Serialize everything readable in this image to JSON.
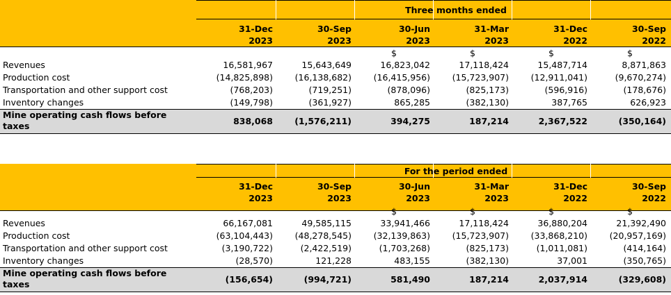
{
  "columns": [
    {
      "line1": "31-Dec",
      "line2": "2023"
    },
    {
      "line1": "30-Sep",
      "line2": "2023"
    },
    {
      "line1": "30-Jun",
      "line2": "2023"
    },
    {
      "line1": "31-Mar",
      "line2": "2023"
    },
    {
      "line1": "31-Dec",
      "line2": "2022"
    },
    {
      "line1": "30-Sep",
      "line2": "2022"
    }
  ],
  "currency_symbol": "$",
  "tables": [
    {
      "title": "Three months ended",
      "rows": [
        {
          "label": "Revenues",
          "values": [
            "16,581,967",
            "15,643,649",
            "16,823,042",
            "17,118,424",
            "15,487,714",
            "8,871,863"
          ]
        },
        {
          "label": "Production cost",
          "values": [
            "(14,825,898)",
            "(16,138,682)",
            "(16,415,956)",
            "(15,723,907)",
            "(12,911,041)",
            "(9,670,274)"
          ]
        },
        {
          "label": "Transportation and other support cost",
          "values": [
            "(768,203)",
            "(719,251)",
            "(878,096)",
            "(825,173)",
            "(596,916)",
            "(178,676)"
          ]
        },
        {
          "label": "Inventory changes",
          "values": [
            "(149,798)",
            "(361,927)",
            "865,285",
            "(382,130)",
            "387,765",
            "626,923"
          ]
        }
      ],
      "total": {
        "label": "Mine operating cash flows before taxes",
        "values": [
          "838,068",
          "(1,576,211)",
          "394,275",
          "187,214",
          "2,367,522",
          "(350,164)"
        ]
      }
    },
    {
      "title": "For the period ended",
      "rows": [
        {
          "label": "Revenues",
          "values": [
            "66,167,081",
            "49,585,115",
            "33,941,466",
            "17,118,424",
            "36,880,204",
            "21,392,490"
          ]
        },
        {
          "label": "Production cost",
          "values": [
            "(63,104,443)",
            "(48,278,545)",
            "(32,139,863)",
            "(15,723,907)",
            "(33,868,210)",
            "(20,957,169)"
          ]
        },
        {
          "label": "Transportation and other support cost",
          "values": [
            "(3,190,722)",
            "(2,422,519)",
            "(1,703,268)",
            "(825,173)",
            "(1,011,081)",
            "(414,164)"
          ]
        },
        {
          "label": "Inventory changes",
          "values": [
            "(28,570)",
            "121,228",
            "483,155",
            "(382,130)",
            "37,001",
            "(350,765)"
          ]
        }
      ],
      "total": {
        "label": "Mine operating cash flows before taxes",
        "values": [
          "(156,654)",
          "(994,721)",
          "581,490",
          "187,214",
          "2,037,914",
          "(329,608)"
        ]
      }
    }
  ]
}
